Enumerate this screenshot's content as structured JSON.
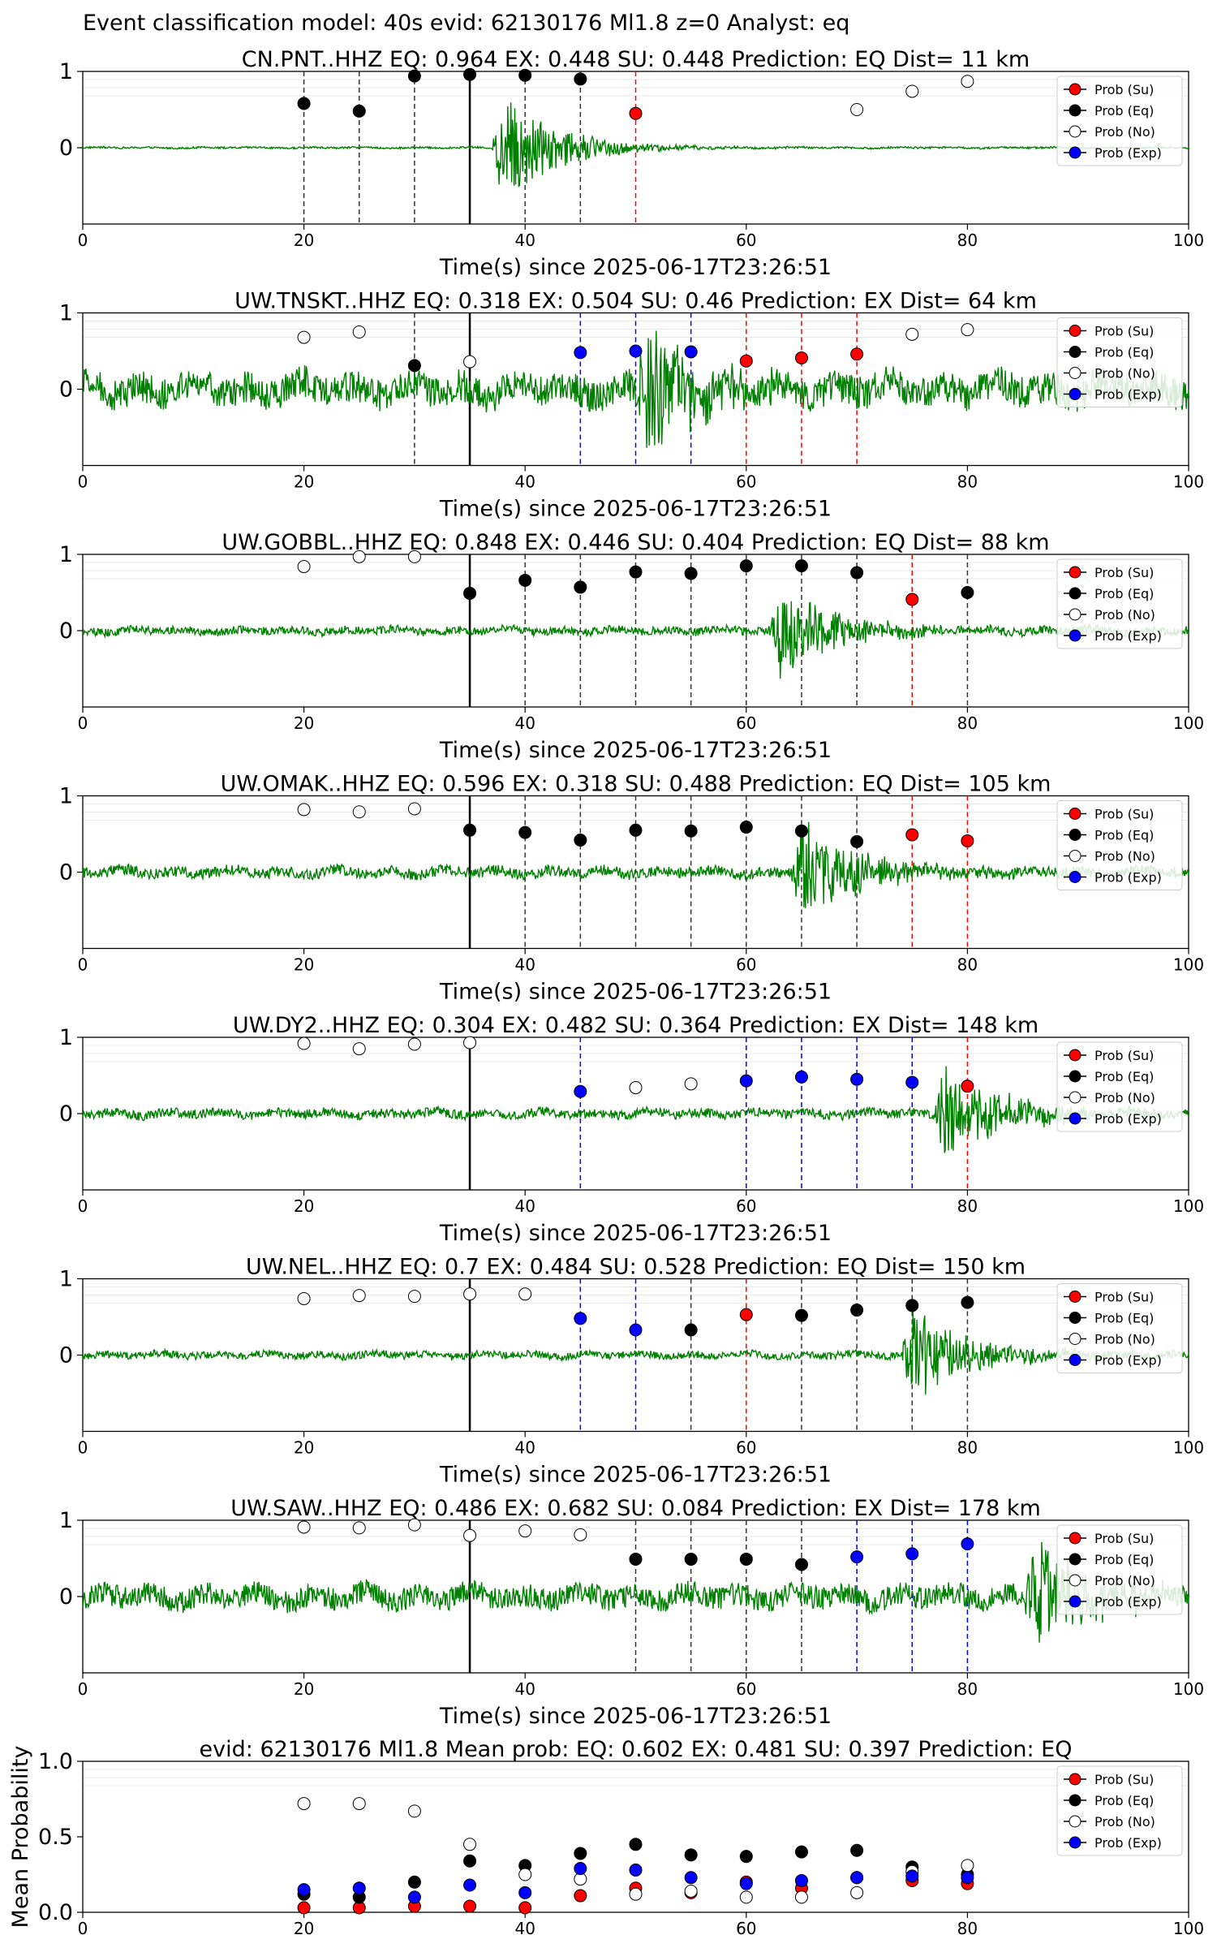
{
  "figure_title": "Event classification model: 40s evid: 62130176 Ml1.8 z=0 Analyst: eq",
  "x_axis_label": "Time(s) since 2025-06-17T23:26:51",
  "legend": [
    {
      "label": "Prob (Su)",
      "fill": "#ff0000"
    },
    {
      "label": "Prob (Eq)",
      "fill": "#000000"
    },
    {
      "label": "Prob (No)",
      "fill": "#ffffff"
    },
    {
      "label": "Prob (Exp)",
      "fill": "#0000ff"
    }
  ],
  "colors": {
    "waveform": "#008000",
    "eq": "#000000",
    "ex": "#0000ff",
    "su": "#ff0000",
    "no": "#ffffff",
    "origin_line": "#000000"
  },
  "chart_data": [
    {
      "type": "scatter",
      "title": "CN.PNT..HHZ   EQ: 0.964   EX: 0.448  SU: 0.448   Prediction: EQ    Dist= 11 km",
      "xlabel": "Time(s) since 2025-06-17T23:26:51",
      "ylabel": "",
      "xlim": [
        0,
        100
      ],
      "ylim": [
        -1,
        1
      ],
      "xticks": [
        0,
        20,
        40,
        60,
        80,
        100
      ],
      "yticks": [
        0,
        1
      ],
      "origin_time": 35,
      "waveform_onset": 37,
      "waveform_amp": 0.9,
      "noise_level": 0.02,
      "points": [
        {
          "x": 20,
          "y": 0.58,
          "class": "eq"
        },
        {
          "x": 25,
          "y": 0.48,
          "class": "eq"
        },
        {
          "x": 30,
          "y": 0.94,
          "class": "eq"
        },
        {
          "x": 35,
          "y": 0.96,
          "class": "eq"
        },
        {
          "x": 40,
          "y": 0.95,
          "class": "eq"
        },
        {
          "x": 45,
          "y": 0.9,
          "class": "eq"
        },
        {
          "x": 50,
          "y": 0.45,
          "class": "su"
        },
        {
          "x": 70,
          "y": 0.5,
          "class": "no"
        },
        {
          "x": 75,
          "y": 0.74,
          "class": "no"
        },
        {
          "x": 80,
          "y": 0.87,
          "class": "no"
        }
      ],
      "legend_position": "upper-right"
    },
    {
      "type": "scatter",
      "title": "UW.TNSKT..HHZ   EQ: 0.318   EX: 0.504   SU: 0.46   Prediction: EX    Dist= 64 km",
      "xlabel": "Time(s) since 2025-06-17T23:26:51",
      "ylabel": "",
      "xlim": [
        0,
        100
      ],
      "ylim": [
        -1,
        1
      ],
      "xticks": [
        0,
        20,
        40,
        60,
        80,
        100
      ],
      "yticks": [
        0,
        1
      ],
      "origin_time": 35,
      "waveform_onset": 50,
      "waveform_amp": 0.95,
      "noise_level": 0.35,
      "points": [
        {
          "x": 20,
          "y": 0.68,
          "class": "no"
        },
        {
          "x": 25,
          "y": 0.75,
          "class": "no"
        },
        {
          "x": 30,
          "y": 0.31,
          "class": "eq"
        },
        {
          "x": 35,
          "y": 0.36,
          "class": "no"
        },
        {
          "x": 45,
          "y": 0.48,
          "class": "ex"
        },
        {
          "x": 50,
          "y": 0.5,
          "class": "ex"
        },
        {
          "x": 55,
          "y": 0.49,
          "class": "ex"
        },
        {
          "x": 60,
          "y": 0.37,
          "class": "su"
        },
        {
          "x": 65,
          "y": 0.41,
          "class": "su"
        },
        {
          "x": 70,
          "y": 0.46,
          "class": "su"
        },
        {
          "x": 75,
          "y": 0.72,
          "class": "no"
        },
        {
          "x": 80,
          "y": 0.78,
          "class": "no"
        }
      ],
      "legend_position": "upper-right"
    },
    {
      "type": "scatter",
      "title": "UW.GOBBL..HHZ   EQ: 0.848   EX: 0.446   SU: 0.404   Prediction: EQ    Dist= 88 km",
      "xlabel": "Time(s) since 2025-06-17T23:26:51",
      "ylabel": "",
      "xlim": [
        0,
        100
      ],
      "ylim": [
        -1,
        1
      ],
      "xticks": [
        0,
        20,
        40,
        60,
        80,
        100
      ],
      "yticks": [
        0,
        1
      ],
      "origin_time": 35,
      "waveform_onset": 62,
      "waveform_amp": 0.75,
      "noise_level": 0.09,
      "points": [
        {
          "x": 20,
          "y": 0.84,
          "class": "no"
        },
        {
          "x": 25,
          "y": 0.97,
          "class": "no"
        },
        {
          "x": 30,
          "y": 0.97,
          "class": "no"
        },
        {
          "x": 35,
          "y": 0.49,
          "class": "eq"
        },
        {
          "x": 40,
          "y": 0.66,
          "class": "eq"
        },
        {
          "x": 45,
          "y": 0.57,
          "class": "eq"
        },
        {
          "x": 50,
          "y": 0.77,
          "class": "eq"
        },
        {
          "x": 55,
          "y": 0.75,
          "class": "eq"
        },
        {
          "x": 60,
          "y": 0.85,
          "class": "eq"
        },
        {
          "x": 65,
          "y": 0.85,
          "class": "eq"
        },
        {
          "x": 70,
          "y": 0.76,
          "class": "eq"
        },
        {
          "x": 75,
          "y": 0.41,
          "class": "su"
        },
        {
          "x": 80,
          "y": 0.5,
          "class": "eq"
        }
      ],
      "legend_position": "upper-right"
    },
    {
      "type": "scatter",
      "title": "UW.OMAK..HHZ   EQ: 0.596   EX: 0.318   SU: 0.488   Prediction: EQ    Dist= 105 km",
      "xlabel": "Time(s) since 2025-06-17T23:26:51",
      "ylabel": "",
      "xlim": [
        0,
        100
      ],
      "ylim": [
        -1,
        1
      ],
      "xticks": [
        0,
        20,
        40,
        60,
        80,
        100
      ],
      "yticks": [
        0,
        1
      ],
      "origin_time": 35,
      "waveform_onset": 64,
      "waveform_amp": 0.8,
      "noise_level": 0.12,
      "points": [
        {
          "x": 20,
          "y": 0.82,
          "class": "no"
        },
        {
          "x": 25,
          "y": 0.79,
          "class": "no"
        },
        {
          "x": 30,
          "y": 0.83,
          "class": "no"
        },
        {
          "x": 35,
          "y": 0.55,
          "class": "eq"
        },
        {
          "x": 40,
          "y": 0.52,
          "class": "eq"
        },
        {
          "x": 45,
          "y": 0.42,
          "class": "eq"
        },
        {
          "x": 50,
          "y": 0.55,
          "class": "eq"
        },
        {
          "x": 55,
          "y": 0.54,
          "class": "eq"
        },
        {
          "x": 60,
          "y": 0.59,
          "class": "eq"
        },
        {
          "x": 65,
          "y": 0.54,
          "class": "eq"
        },
        {
          "x": 70,
          "y": 0.4,
          "class": "eq"
        },
        {
          "x": 75,
          "y": 0.49,
          "class": "su"
        },
        {
          "x": 80,
          "y": 0.41,
          "class": "su"
        }
      ],
      "legend_position": "upper-right"
    },
    {
      "type": "scatter",
      "title": "UW.DY2..HHZ   EQ: 0.304   EX: 0.482   SU: 0.364   Prediction: EX    Dist= 148 km",
      "xlabel": "Time(s) since 2025-06-17T23:26:51",
      "ylabel": "",
      "xlim": [
        0,
        100
      ],
      "ylim": [
        -1,
        1
      ],
      "xticks": [
        0,
        20,
        40,
        60,
        80,
        100
      ],
      "yticks": [
        0,
        1
      ],
      "origin_time": 35,
      "waveform_onset": 77,
      "waveform_amp": 0.85,
      "noise_level": 0.1,
      "points": [
        {
          "x": 20,
          "y": 0.92,
          "class": "no"
        },
        {
          "x": 25,
          "y": 0.85,
          "class": "no"
        },
        {
          "x": 30,
          "y": 0.91,
          "class": "no"
        },
        {
          "x": 35,
          "y": 0.93,
          "class": "no"
        },
        {
          "x": 45,
          "y": 0.29,
          "class": "ex"
        },
        {
          "x": 50,
          "y": 0.34,
          "class": "no"
        },
        {
          "x": 55,
          "y": 0.39,
          "class": "no"
        },
        {
          "x": 60,
          "y": 0.43,
          "class": "ex"
        },
        {
          "x": 65,
          "y": 0.48,
          "class": "ex"
        },
        {
          "x": 70,
          "y": 0.45,
          "class": "ex"
        },
        {
          "x": 75,
          "y": 0.41,
          "class": "ex"
        },
        {
          "x": 80,
          "y": 0.36,
          "class": "su"
        }
      ],
      "legend_position": "upper-right"
    },
    {
      "type": "scatter",
      "title": "UW.NEL..HHZ   EQ: 0.7   EX: 0.484   SU: 0.528   Prediction: EQ    Dist= 150 km",
      "xlabel": "Time(s) since 2025-06-17T23:26:51",
      "ylabel": "",
      "xlim": [
        0,
        100
      ],
      "ylim": [
        -1,
        1
      ],
      "xticks": [
        0,
        20,
        40,
        60,
        80,
        100
      ],
      "yticks": [
        0,
        1
      ],
      "origin_time": 35,
      "waveform_onset": 74,
      "waveform_amp": 0.8,
      "noise_level": 0.08,
      "points": [
        {
          "x": 20,
          "y": 0.74,
          "class": "no"
        },
        {
          "x": 25,
          "y": 0.78,
          "class": "no"
        },
        {
          "x": 30,
          "y": 0.77,
          "class": "no"
        },
        {
          "x": 35,
          "y": 0.8,
          "class": "no"
        },
        {
          "x": 40,
          "y": 0.8,
          "class": "no"
        },
        {
          "x": 45,
          "y": 0.48,
          "class": "ex"
        },
        {
          "x": 50,
          "y": 0.33,
          "class": "ex"
        },
        {
          "x": 55,
          "y": 0.33,
          "class": "eq"
        },
        {
          "x": 60,
          "y": 0.53,
          "class": "su"
        },
        {
          "x": 65,
          "y": 0.52,
          "class": "eq"
        },
        {
          "x": 70,
          "y": 0.59,
          "class": "eq"
        },
        {
          "x": 75,
          "y": 0.65,
          "class": "eq"
        },
        {
          "x": 80,
          "y": 0.69,
          "class": "eq"
        }
      ],
      "legend_position": "upper-right"
    },
    {
      "type": "scatter",
      "title": "UW.SAW..HHZ   EQ: 0.486   EX: 0.682   SU: 0.084   Prediction: EX    Dist= 178 km",
      "xlabel": "Time(s) since 2025-06-17T23:26:51",
      "ylabel": "",
      "xlim": [
        0,
        100
      ],
      "ylim": [
        -1,
        1
      ],
      "xticks": [
        0,
        20,
        40,
        60,
        80,
        100
      ],
      "yticks": [
        0,
        1
      ],
      "origin_time": 35,
      "waveform_onset": 85,
      "waveform_amp": 0.9,
      "noise_level": 0.25,
      "points": [
        {
          "x": 20,
          "y": 0.91,
          "class": "no"
        },
        {
          "x": 25,
          "y": 0.9,
          "class": "no"
        },
        {
          "x": 30,
          "y": 0.94,
          "class": "no"
        },
        {
          "x": 35,
          "y": 0.8,
          "class": "no"
        },
        {
          "x": 40,
          "y": 0.86,
          "class": "no"
        },
        {
          "x": 45,
          "y": 0.81,
          "class": "no"
        },
        {
          "x": 50,
          "y": 0.49,
          "class": "eq"
        },
        {
          "x": 55,
          "y": 0.49,
          "class": "eq"
        },
        {
          "x": 60,
          "y": 0.49,
          "class": "eq"
        },
        {
          "x": 65,
          "y": 0.42,
          "class": "eq"
        },
        {
          "x": 70,
          "y": 0.52,
          "class": "ex"
        },
        {
          "x": 75,
          "y": 0.56,
          "class": "ex"
        },
        {
          "x": 80,
          "y": 0.69,
          "class": "ex"
        }
      ],
      "legend_position": "upper-right"
    },
    {
      "type": "scatter",
      "title": "evid: 62130176   Ml1.8   Mean prob:   EQ: 0.602   EX: 0.481   SU: 0.397   Prediction: EQ",
      "xlabel": "",
      "ylabel": "Mean Probability",
      "xlim": [
        0,
        100
      ],
      "ylim": [
        0,
        1.0
      ],
      "xticks": [
        0,
        20,
        40,
        60,
        80,
        100
      ],
      "yticks": [
        0.0,
        0.5,
        1.0
      ],
      "series": [
        {
          "name": "Prob (Su)",
          "class": "su",
          "x": [
            20,
            25,
            30,
            35,
            40,
            45,
            50,
            55,
            60,
            65,
            70,
            75,
            80
          ],
          "y": [
            0.03,
            0.03,
            0.04,
            0.04,
            0.03,
            0.11,
            0.16,
            0.13,
            0.2,
            0.16,
            0.23,
            0.21,
            0.19
          ]
        },
        {
          "name": "Prob (Eq)",
          "class": "eq",
          "x": [
            20,
            25,
            30,
            35,
            40,
            45,
            50,
            55,
            60,
            65,
            70,
            75,
            80
          ],
          "y": [
            0.12,
            0.1,
            0.2,
            0.34,
            0.31,
            0.39,
            0.45,
            0.38,
            0.37,
            0.4,
            0.41,
            0.3,
            0.25
          ]
        },
        {
          "name": "Prob (No)",
          "class": "no",
          "x": [
            20,
            25,
            30,
            35,
            40,
            45,
            50,
            55,
            60,
            65,
            70,
            75,
            80
          ],
          "y": [
            0.72,
            0.72,
            0.67,
            0.45,
            0.25,
            0.22,
            0.12,
            0.14,
            0.1,
            0.1,
            0.13,
            0.27,
            0.31
          ]
        },
        {
          "name": "Prob (Exp)",
          "class": "ex",
          "x": [
            20,
            25,
            30,
            35,
            40,
            45,
            50,
            55,
            60,
            65,
            70,
            75,
            80
          ],
          "y": [
            0.15,
            0.16,
            0.1,
            0.18,
            0.13,
            0.29,
            0.28,
            0.23,
            0.19,
            0.21,
            0.23,
            0.24,
            0.23
          ]
        }
      ],
      "legend_position": "upper-right"
    }
  ]
}
